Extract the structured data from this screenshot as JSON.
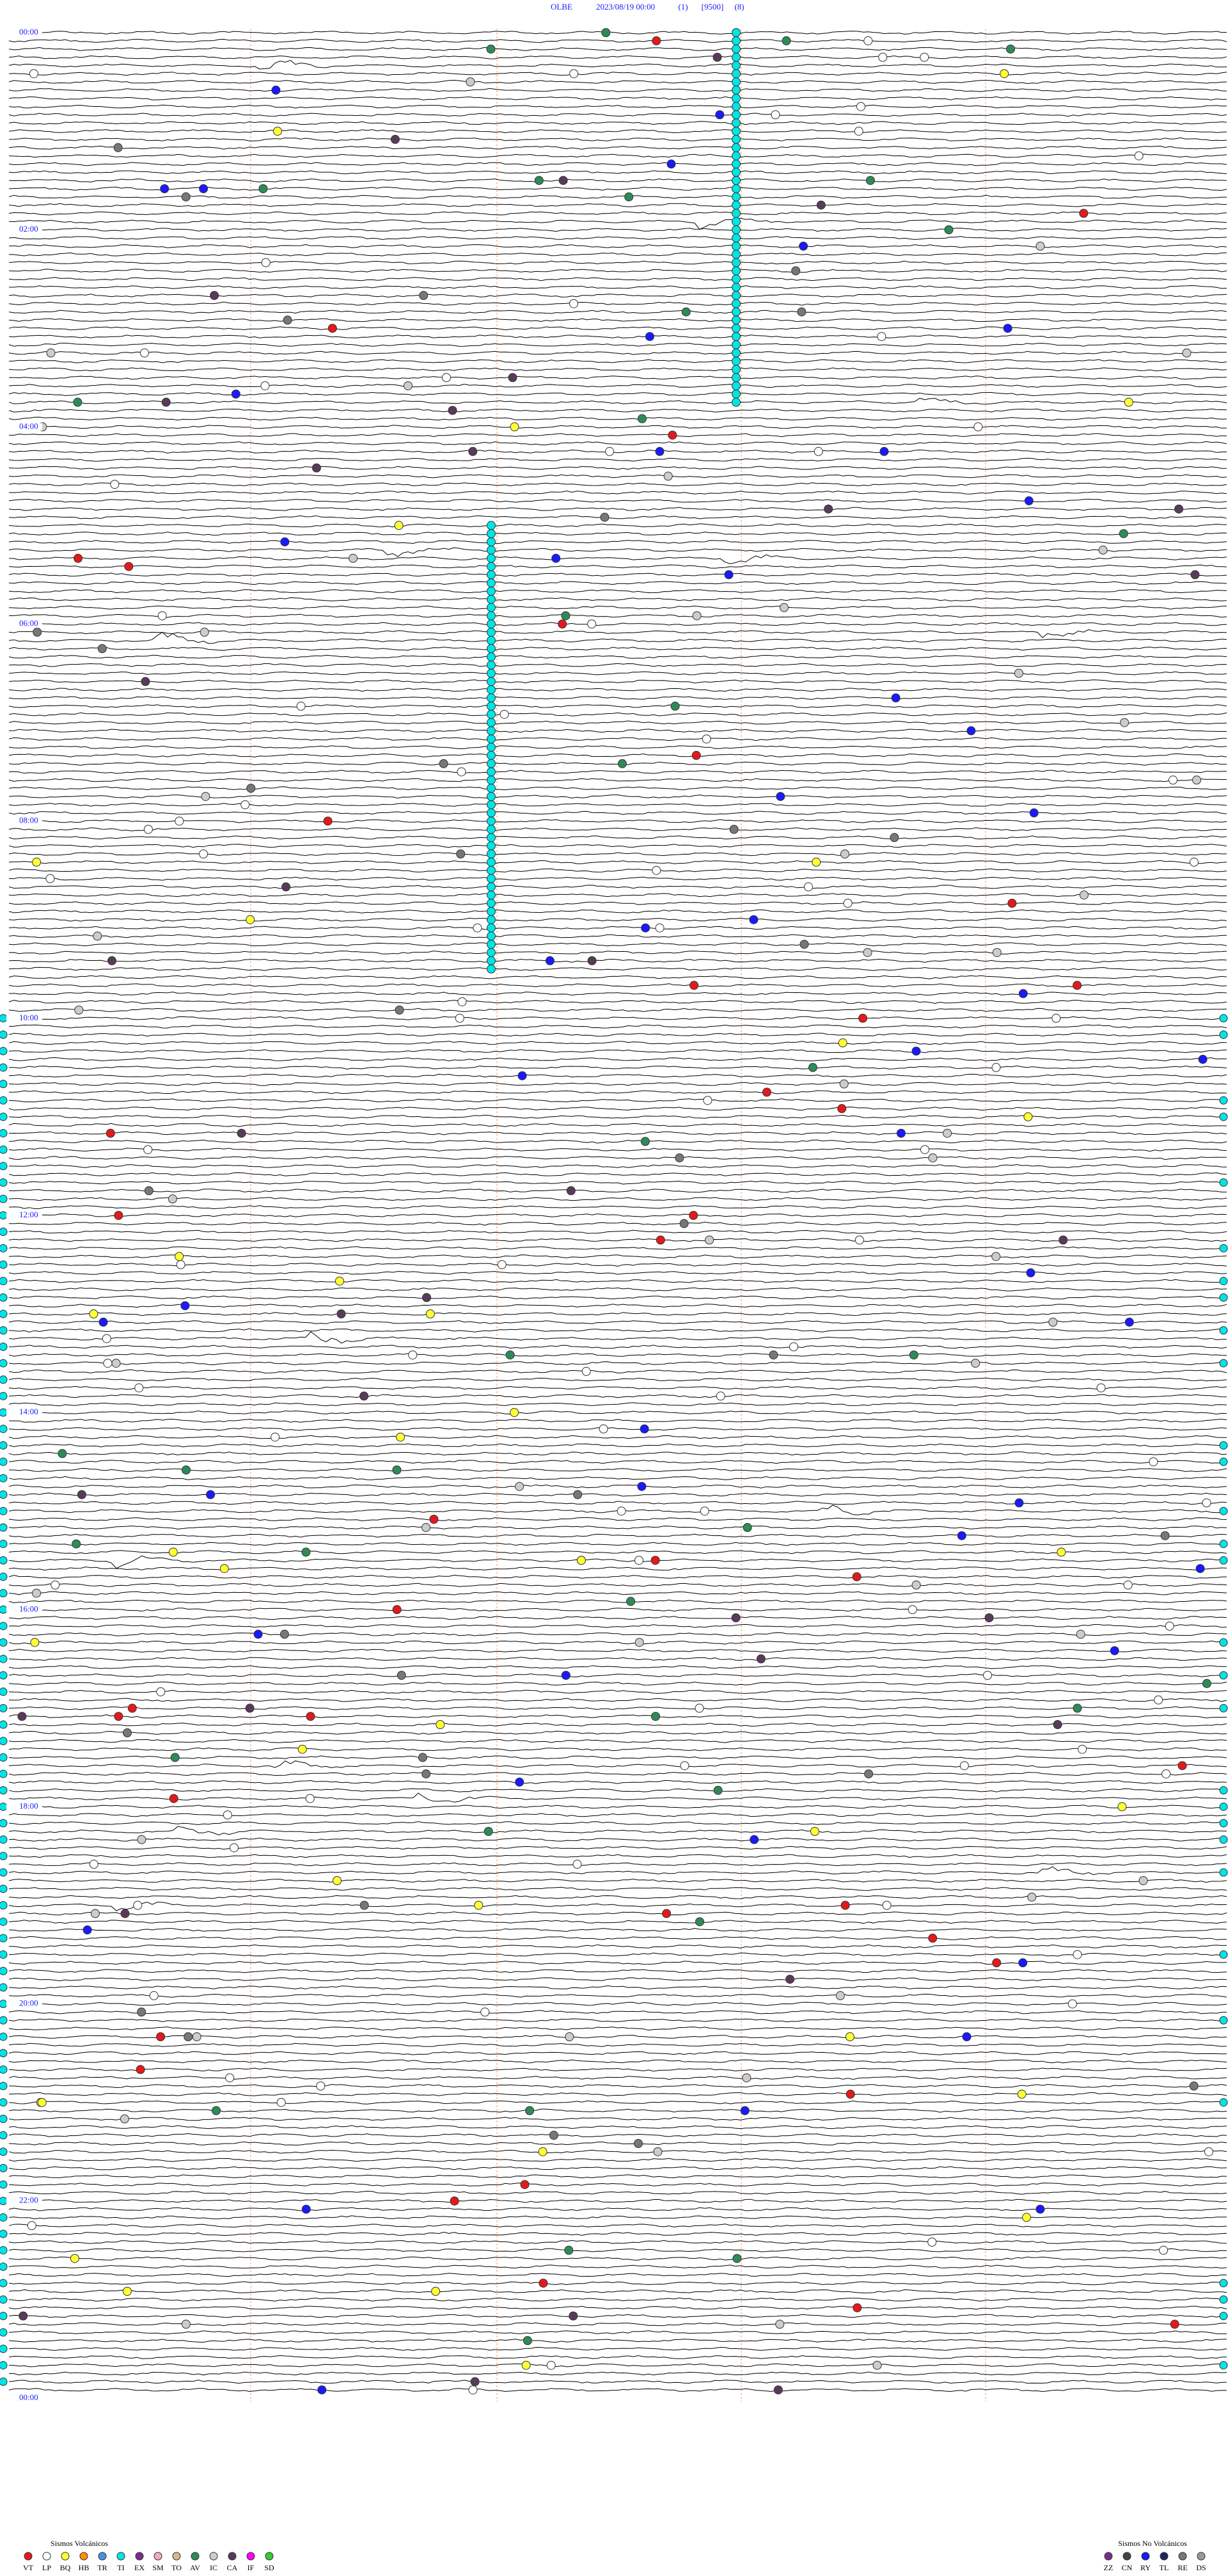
{
  "header": {
    "station": "OLBE",
    "datetime": "2023/08/19 00:00",
    "channel": "(1)",
    "scale": "[9500]",
    "hours": "(8)"
  },
  "time_labels": [
    "00:00",
    "02:00",
    "04:00",
    "06:00",
    "08:00",
    "10:00",
    "12:00",
    "14:00",
    "16:00",
    "18:00",
    "20:00",
    "22:00",
    "00:00"
  ],
  "legend_volcanic": {
    "title": "Sismos Volcánicos",
    "items": [
      {
        "code": "VT",
        "color": "#e31a1c"
      },
      {
        "code": "LP",
        "color": "#ffffff"
      },
      {
        "code": "BQ",
        "color": "#ffff33"
      },
      {
        "code": "HB",
        "color": "#ff8c00"
      },
      {
        "code": "TR",
        "color": "#4a90e2"
      },
      {
        "code": "TI",
        "color": "#00e5e5"
      },
      {
        "code": "EX",
        "color": "#7b2d8b"
      },
      {
        "code": "SM",
        "color": "#f4a6c8"
      },
      {
        "code": "TO",
        "color": "#d8b58a"
      },
      {
        "code": "AV",
        "color": "#2e8b57"
      },
      {
        "code": "IC",
        "color": "#cccccc"
      },
      {
        "code": "CA",
        "color": "#5a3a5a"
      },
      {
        "code": "IF",
        "color": "#ff00ff"
      },
      {
        "code": "SD",
        "color": "#33cc33"
      }
    ]
  },
  "legend_non_volcanic": {
    "title": "Sismos No Volcánicos",
    "items": [
      {
        "code": "ZZ",
        "color": "#7b2d8b"
      },
      {
        "code": "CN",
        "color": "#444444"
      },
      {
        "code": "RY",
        "color": "#1a1aff"
      },
      {
        "code": "TL",
        "color": "#222266"
      },
      {
        "code": "RE",
        "color": "#777777"
      },
      {
        "code": "DS",
        "color": "#999999"
      }
    ]
  }
}
